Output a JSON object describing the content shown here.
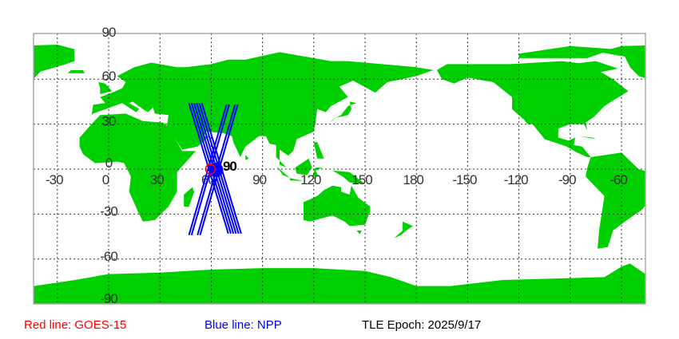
{
  "colors": {
    "land": "#00d000",
    "ocean": "#ffffff",
    "grid": "#333333",
    "track": "#0000ff",
    "goes": "#ff0000",
    "frame": "#aaaaaa"
  },
  "map": {
    "lon_grid": [
      -30,
      0,
      30,
      60,
      90,
      120,
      150,
      180,
      210,
      240,
      270,
      300
    ],
    "lon_labels": [
      "-30",
      "0",
      "30",
      "60",
      "90",
      "120",
      "150",
      "180",
      "-150",
      "-120",
      "-90",
      "-60"
    ],
    "lat_grid": [
      90,
      60,
      30,
      0,
      -30,
      -60,
      -90
    ],
    "lat_labels": [
      "90",
      "60",
      "30",
      "0",
      "-30",
      "-60",
      "-90"
    ],
    "satellite_marker_label": "90",
    "goes_position": {
      "lon": 60,
      "lat": 0
    },
    "npp_tracks": [
      [
        47,
        44,
        70,
        -43
      ],
      [
        48.5,
        44,
        71.5,
        -43
      ],
      [
        50,
        44,
        73,
        -43
      ],
      [
        51.5,
        44,
        74.5,
        -43
      ],
      [
        53,
        44,
        76,
        -43
      ],
      [
        54.5,
        44,
        77.5,
        -43
      ],
      [
        47,
        -44,
        69,
        43
      ],
      [
        48.5,
        -44,
        70.5,
        43
      ],
      [
        52,
        -44,
        74,
        43
      ],
      [
        53.5,
        -44,
        75.5,
        43
      ]
    ]
  },
  "legend": {
    "red_line": "Red line: GOES-15",
    "blue_line": "Blue line: NPP",
    "epoch": "TLE Epoch: 2025/9/17"
  }
}
